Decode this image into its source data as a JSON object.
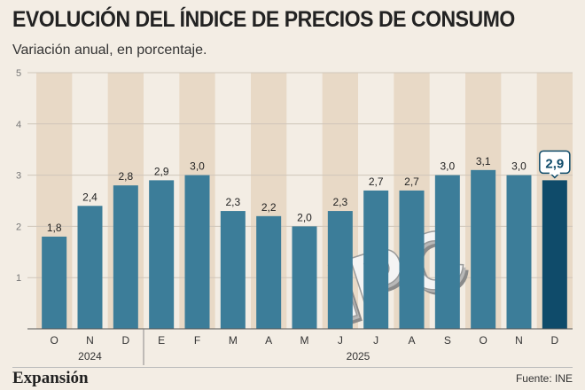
{
  "header": {
    "title": "EVOLUCIÓN DEL ÍNDICE DE PRECIOS DE CONSUMO",
    "subtitle": "Variación anual, en porcentaje."
  },
  "footer": {
    "brand": "Expansión",
    "source": "Fuente: INE"
  },
  "watermark": "IPC",
  "colors": {
    "background": "#f3ede4",
    "band": "#e8d9c6",
    "bar": "#3c7d99",
    "bar_highlight": "#0f4b6a",
    "grid": "#cfc6ba",
    "label_highlight": "#0f4b6a"
  },
  "chart_data": {
    "type": "bar",
    "categories": [
      "O",
      "N",
      "D",
      "E",
      "F",
      "M",
      "A",
      "M",
      "J",
      "J",
      "A",
      "S",
      "O",
      "N",
      "D"
    ],
    "values": [
      1.8,
      2.4,
      2.8,
      2.9,
      3.0,
      2.3,
      2.2,
      2.0,
      2.3,
      2.7,
      2.7,
      3.0,
      3.1,
      3.0,
      2.9
    ],
    "value_labels": [
      "1,8",
      "2,4",
      "2,8",
      "2,9",
      "3,0",
      "2,3",
      "2,2",
      "2,0",
      "2,3",
      "2,7",
      "2,7",
      "3,0",
      "3,1",
      "3,0",
      "2,9"
    ],
    "highlight_index": 14,
    "year_groups": [
      {
        "label": "2024",
        "count": 3
      },
      {
        "label": "2025",
        "count": 12
      }
    ],
    "yticks": [
      "1",
      "2",
      "3",
      "4",
      "5"
    ],
    "ylim": [
      0,
      5
    ],
    "grid": true,
    "title": "EVOLUCIÓN DEL ÍNDICE DE PRECIOS DE CONSUMO",
    "subtitle": "Variación anual, en porcentaje.",
    "xlabel": "",
    "ylabel": ""
  }
}
